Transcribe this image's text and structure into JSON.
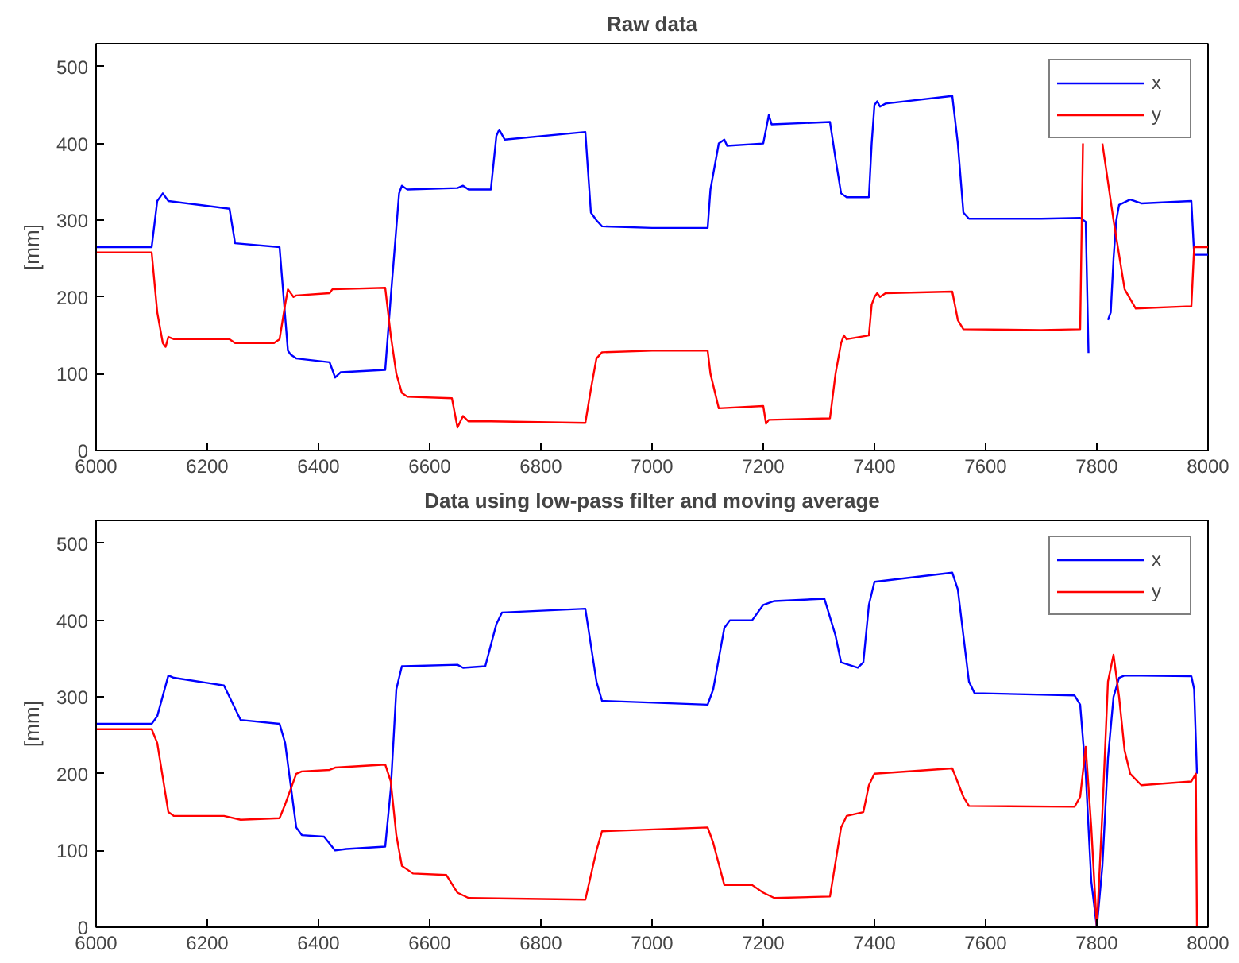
{
  "chart_data": [
    {
      "type": "line",
      "title": "Raw data",
      "ylabel": "[mm]",
      "xlim": [
        6000,
        8000
      ],
      "ylim": [
        0,
        530
      ],
      "xticks": [
        6000,
        6200,
        6400,
        6600,
        6800,
        7000,
        7200,
        7400,
        7600,
        7800,
        8000
      ],
      "yticks": [
        0,
        100,
        200,
        300,
        400,
        500
      ],
      "grid": false,
      "legend": "top right",
      "series": [
        {
          "name": "x",
          "color": "#0000ff",
          "x": [
            6000,
            6100,
            6110,
            6120,
            6130,
            6240,
            6250,
            6330,
            6345,
            6350,
            6360,
            6420,
            6430,
            6440,
            6520,
            6530,
            6545,
            6550,
            6560,
            6650,
            6660,
            6670,
            6710,
            6720,
            6725,
            6735,
            6880,
            6890,
            6900,
            6910,
            7000,
            7100,
            7105,
            7120,
            7130,
            7135,
            7200,
            7210,
            7215,
            7320,
            7330,
            7340,
            7350,
            7390,
            7395,
            7400,
            7405,
            7410,
            7420,
            7540,
            7550,
            7560,
            7570,
            7700,
            7770,
            7780,
            7785,
            7800,
            7820,
            7825,
            7830,
            7835,
            7840,
            7860,
            7880,
            7970,
            7975,
            8000
          ],
          "values": [
            265,
            265,
            325,
            335,
            325,
            315,
            270,
            265,
            130,
            125,
            120,
            115,
            95,
            102,
            105,
            200,
            335,
            345,
            340,
            342,
            345,
            340,
            340,
            410,
            418,
            405,
            415,
            310,
            300,
            292,
            290,
            290,
            340,
            400,
            405,
            397,
            400,
            437,
            425,
            428,
            380,
            335,
            330,
            330,
            400,
            450,
            455,
            448,
            452,
            462,
            400,
            310,
            302,
            302,
            303,
            298,
            127,
            null,
            170,
            180,
            250,
            300,
            320,
            327,
            322,
            325,
            255,
            255
          ]
        },
        {
          "name": "y",
          "color": "#ff0000",
          "x": [
            6000,
            6100,
            6110,
            6120,
            6125,
            6130,
            6140,
            6240,
            6250,
            6320,
            6330,
            6340,
            6345,
            6355,
            6360,
            6420,
            6425,
            6520,
            6530,
            6540,
            6550,
            6560,
            6640,
            6650,
            6660,
            6670,
            6710,
            6880,
            6890,
            6900,
            6910,
            7000,
            7100,
            7105,
            7120,
            7200,
            7205,
            7210,
            7320,
            7330,
            7340,
            7345,
            7350,
            7390,
            7395,
            7400,
            7405,
            7410,
            7420,
            7540,
            7550,
            7560,
            7700,
            7770,
            7775,
            7795,
            7810,
            7830,
            7850,
            7870,
            7970,
            7975,
            8000
          ],
          "values": [
            258,
            258,
            180,
            140,
            135,
            148,
            145,
            145,
            140,
            140,
            145,
            190,
            210,
            200,
            202,
            205,
            210,
            212,
            150,
            100,
            75,
            70,
            68,
            30,
            45,
            38,
            38,
            36,
            80,
            120,
            128,
            130,
            130,
            100,
            55,
            58,
            35,
            40,
            42,
            100,
            140,
            150,
            145,
            150,
            190,
            200,
            205,
            200,
            205,
            207,
            170,
            158,
            157,
            158,
            400,
            null,
            400,
            300,
            210,
            185,
            188,
            265,
            265
          ]
        }
      ]
    },
    {
      "type": "line",
      "title": "Data using low-pass filter and moving average",
      "ylabel": "[mm]",
      "xlim": [
        6000,
        8000
      ],
      "ylim": [
        0,
        530
      ],
      "xticks": [
        6000,
        6200,
        6400,
        6600,
        6800,
        7000,
        7200,
        7400,
        7600,
        7800,
        8000
      ],
      "yticks": [
        0,
        100,
        200,
        300,
        400,
        500
      ],
      "grid": false,
      "legend": "top right",
      "series": [
        {
          "name": "x",
          "color": "#0000ff",
          "x": [
            6000,
            6100,
            6110,
            6130,
            6140,
            6230,
            6260,
            6330,
            6340,
            6360,
            6370,
            6410,
            6430,
            6450,
            6520,
            6530,
            6540,
            6550,
            6650,
            6660,
            6700,
            6720,
            6730,
            6880,
            6900,
            6910,
            7100,
            7110,
            7130,
            7140,
            7180,
            7200,
            7220,
            7310,
            7330,
            7340,
            7370,
            7380,
            7390,
            7400,
            7540,
            7550,
            7570,
            7580,
            7760,
            7770,
            7780,
            7790,
            7800,
            7810,
            7820,
            7830,
            7840,
            7850,
            7970,
            7975,
            7980
          ],
          "values": [
            265,
            265,
            275,
            328,
            325,
            315,
            270,
            265,
            240,
            130,
            120,
            118,
            100,
            102,
            105,
            180,
            310,
            340,
            342,
            338,
            340,
            395,
            410,
            415,
            320,
            295,
            290,
            310,
            390,
            400,
            400,
            420,
            425,
            428,
            380,
            345,
            338,
            345,
            420,
            450,
            462,
            440,
            320,
            305,
            302,
            290,
            200,
            60,
            0,
            80,
            220,
            300,
            325,
            328,
            327,
            310,
            200
          ]
        },
        {
          "name": "y",
          "color": "#ff0000",
          "x": [
            6000,
            6100,
            6110,
            6130,
            6140,
            6230,
            6260,
            6330,
            6340,
            6360,
            6370,
            6420,
            6430,
            6520,
            6530,
            6540,
            6550,
            6570,
            6630,
            6650,
            6670,
            6880,
            6900,
            6910,
            7100,
            7110,
            7130,
            7180,
            7200,
            7220,
            7320,
            7340,
            7350,
            7380,
            7390,
            7400,
            7540,
            7560,
            7570,
            7760,
            7770,
            7780,
            7790,
            7800,
            7810,
            7820,
            7830,
            7840,
            7850,
            7860,
            7880,
            7970,
            7978,
            7980,
            8000
          ],
          "values": [
            258,
            258,
            240,
            150,
            145,
            145,
            140,
            142,
            160,
            200,
            203,
            205,
            208,
            212,
            190,
            120,
            80,
            70,
            68,
            45,
            38,
            36,
            100,
            125,
            130,
            110,
            55,
            55,
            45,
            38,
            40,
            130,
            145,
            150,
            185,
            200,
            207,
            170,
            158,
            157,
            170,
            235,
            130,
            0,
            150,
            320,
            355,
            300,
            230,
            200,
            185,
            190,
            200,
            0,
            0
          ]
        }
      ]
    }
  ]
}
